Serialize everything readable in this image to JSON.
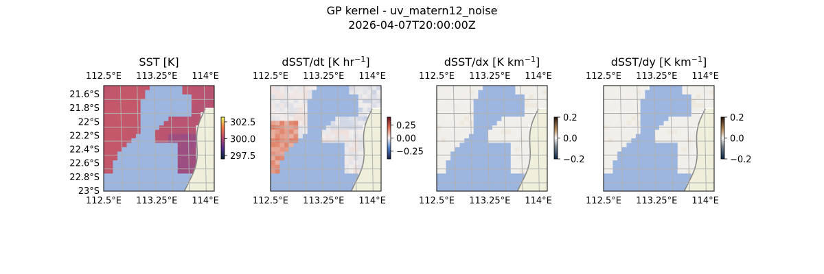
{
  "figure": {
    "title": "GP kernel - uv_matern12_noise",
    "subtitle": "2026-04-07T20:00:00Z"
  },
  "chart_data": [
    {
      "type": "heatmap",
      "title": "SST [K]",
      "title_base": "SST [K",
      "title_sup": "",
      "title_end": "]",
      "x_ticks": [
        "112.5°E",
        "113.25°E",
        "114°E"
      ],
      "y_ticks": [
        "21.6°S",
        "21.8°S",
        "22°S",
        "22.2°S",
        "22.4°S",
        "22.6°S",
        "22.8°S",
        "23°S"
      ],
      "show_y_ticks": true,
      "colorbar": {
        "ticks": [
          "302.5",
          "300.0",
          "297.5"
        ],
        "tick_values": [
          302.5,
          300.0,
          297.5
        ],
        "range": [
          297.0,
          303.2
        ],
        "cmap": "thermal"
      },
      "field": "sst"
    },
    {
      "type": "heatmap",
      "title": "dSST/dt [K hr−1]",
      "title_base": "dSST/dt [K hr",
      "title_sup": "−1",
      "title_end": "]",
      "x_ticks": [
        "112.5°E",
        "113.25°E",
        "114°E"
      ],
      "y_ticks": [],
      "show_y_ticks": false,
      "colorbar": {
        "ticks": [
          "0.25",
          "0.00",
          "−0.25"
        ],
        "tick_values": [
          0.25,
          0.0,
          -0.25
        ],
        "range": [
          -0.4,
          0.4
        ],
        "cmap": "balance"
      },
      "field": "dt"
    },
    {
      "type": "heatmap",
      "title": "dSST/dx [K km−1]",
      "title_base": "dSST/dx [K km",
      "title_sup": "−1",
      "title_end": "]",
      "x_ticks": [
        "112.5°E",
        "113.25°E",
        "114°E"
      ],
      "y_ticks": [],
      "show_y_ticks": false,
      "colorbar": {
        "ticks": [
          "0.2",
          "0.0",
          "−0.2"
        ],
        "tick_values": [
          0.2,
          0.0,
          -0.2
        ],
        "range": [
          -0.2,
          0.2
        ],
        "cmap": "diff"
      },
      "field": "dx"
    },
    {
      "type": "heatmap",
      "title": "dSST/dy [K km−1]",
      "title_base": "dSST/dy [K km",
      "title_sup": "−1",
      "title_end": "]",
      "x_ticks": [
        "112.5°E",
        "113.25°E",
        "114°E"
      ],
      "y_ticks": [],
      "show_y_ticks": false,
      "colorbar": {
        "ticks": [
          "0.2",
          "0.0",
          "−0.2"
        ],
        "tick_values": [
          0.2,
          0.0,
          -0.2
        ],
        "range": [
          -0.2,
          0.2
        ],
        "cmap": "diff"
      },
      "field": "dy"
    }
  ],
  "colors": {
    "ocean_mask": "#9db6e0",
    "land": "#efefdc",
    "coastline": "#888888",
    "gridline": "#b0b0b0"
  }
}
